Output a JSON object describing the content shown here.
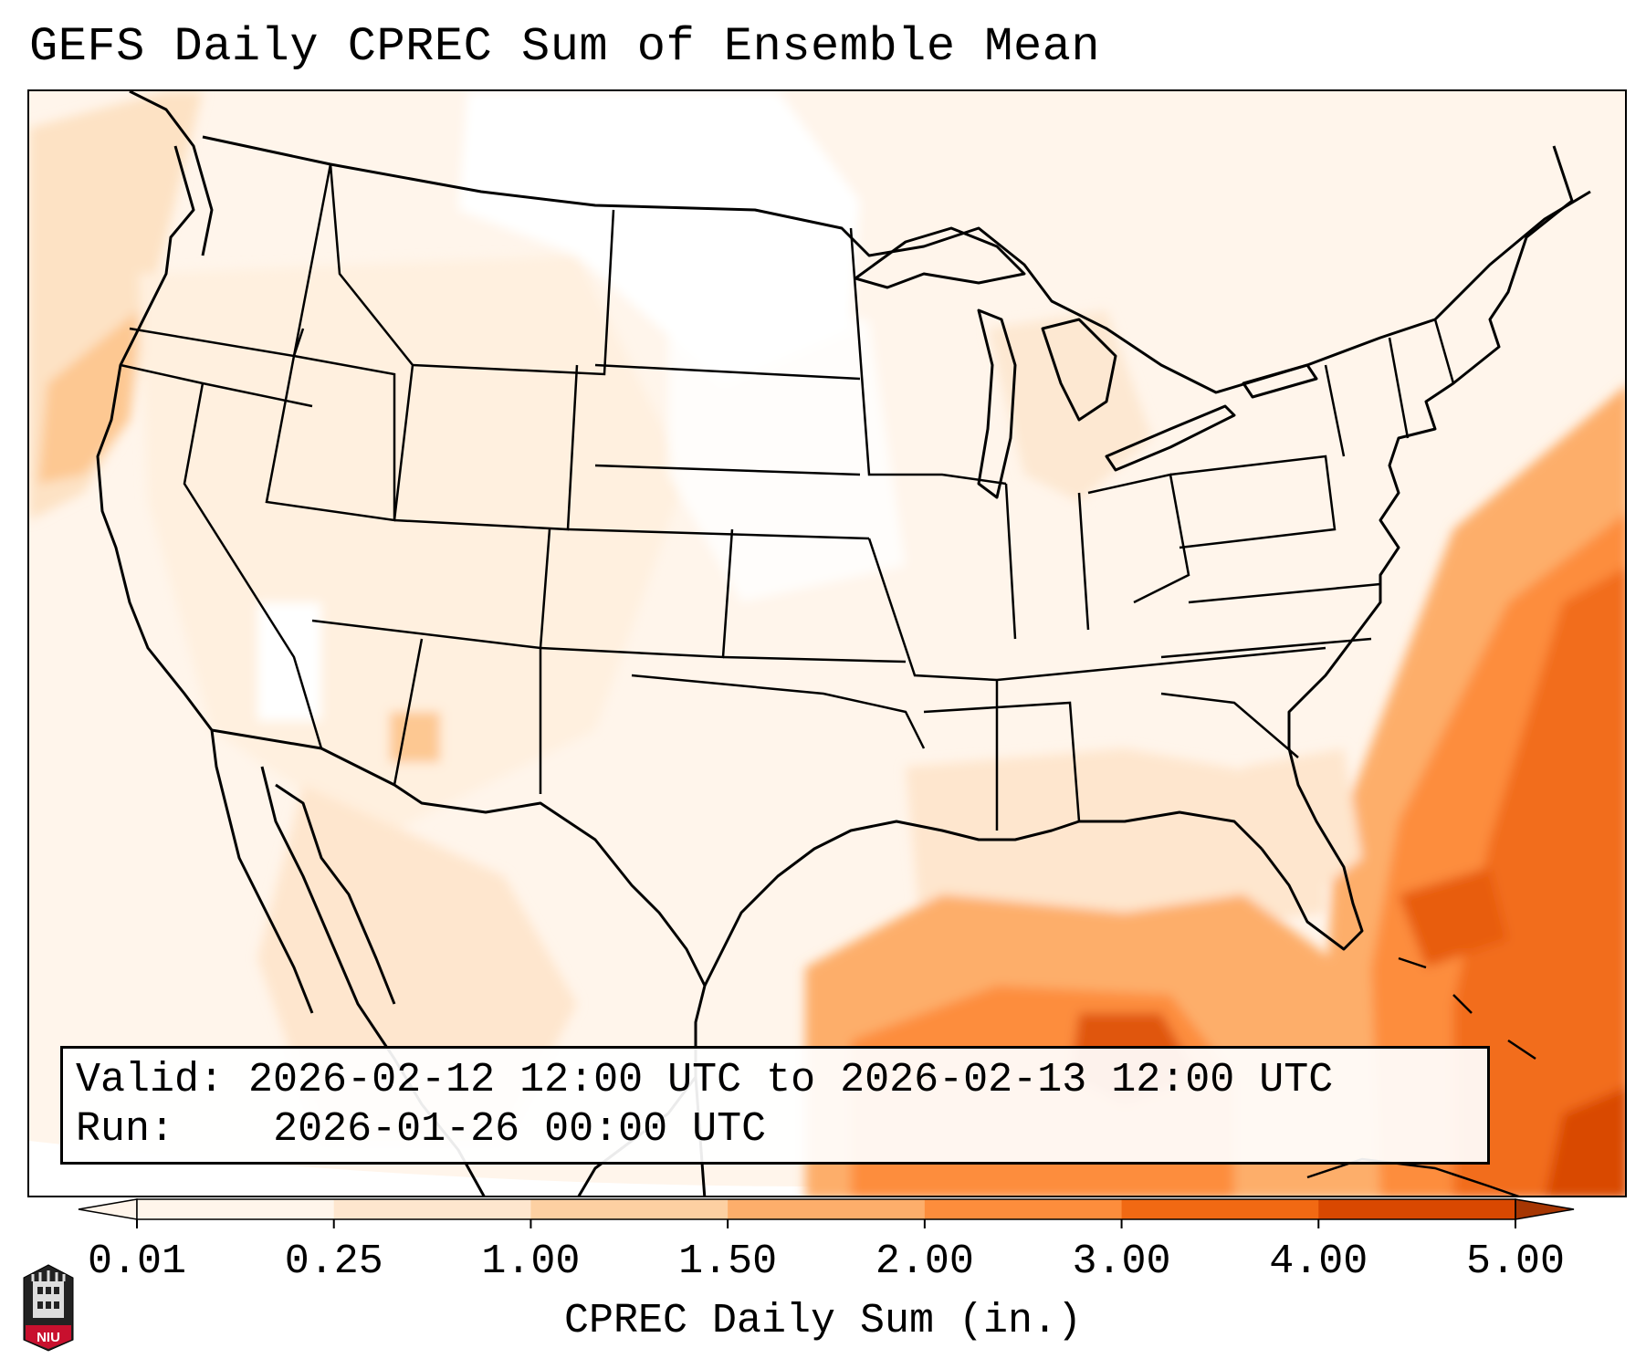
{
  "title": "GEFS Daily CPREC Sum of Ensemble Mean",
  "info": {
    "valid_label": "Valid:",
    "valid_value": "2026-02-12 12:00 UTC to 2026-02-13 12:00 UTC",
    "run_label": "Run:",
    "run_value": "2026-01-26 00:00 UTC"
  },
  "colorbar": {
    "label": "CPREC Daily Sum (in.)",
    "ticks": [
      "0.01",
      "0.25",
      "1.00",
      "1.50",
      "2.00",
      "3.00",
      "4.00",
      "5.00"
    ],
    "colors": [
      "#fff5eb",
      "#fee6ce",
      "#fdd0a2",
      "#fdae6b",
      "#fd8d3c",
      "#f16913",
      "#d94801",
      "#a63603"
    ],
    "extend": "both"
  },
  "map": {
    "projection": "Lambert Conformal (CONUS)",
    "features": [
      "state-borders",
      "country-borders",
      "coastlines"
    ]
  },
  "logo": {
    "text": "NIU"
  }
}
